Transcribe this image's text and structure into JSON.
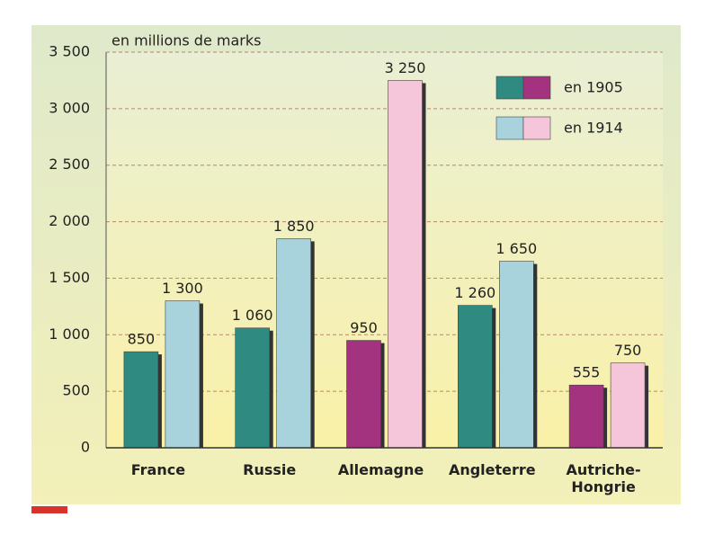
{
  "chart_data": {
    "type": "bar",
    "y_label": "en millions de marks",
    "categories": [
      "France",
      "Russie",
      "Allemagne",
      "Angleterre",
      "Autriche-Hongrie"
    ],
    "series": [
      {
        "name": "en 1905",
        "colors": [
          "#2f8a82",
          "#2f8a82",
          "#a3337f",
          "#2f8a82",
          "#a3337f"
        ],
        "values": [
          850,
          1060,
          950,
          1260,
          555
        ],
        "value_labels": [
          "850",
          "1 060",
          "950",
          "1 260",
          "555"
        ]
      },
      {
        "name": "en 1914",
        "colors": [
          "#a9d3dc",
          "#a9d3dc",
          "#f5c6da",
          "#a9d3dc",
          "#f5c6da"
        ],
        "values": [
          1300,
          1850,
          3250,
          1650,
          750
        ],
        "value_labels": [
          "1 300",
          "1 850",
          "3 250",
          "1 650",
          "750"
        ]
      }
    ],
    "ylim": [
      0,
      3500
    ],
    "yticks": [
      0,
      500,
      {
        "value": 1000,
        "label": "1 000"
      },
      {
        "value": 1500,
        "label": "1 500"
      },
      {
        "value": 2000,
        "label": "2 000"
      },
      {
        "value": 2500,
        "label": "2 500"
      },
      {
        "value": 3000,
        "label": "3 000"
      },
      {
        "value": 3500,
        "label": "3 500"
      }
    ],
    "grid": true
  }
}
